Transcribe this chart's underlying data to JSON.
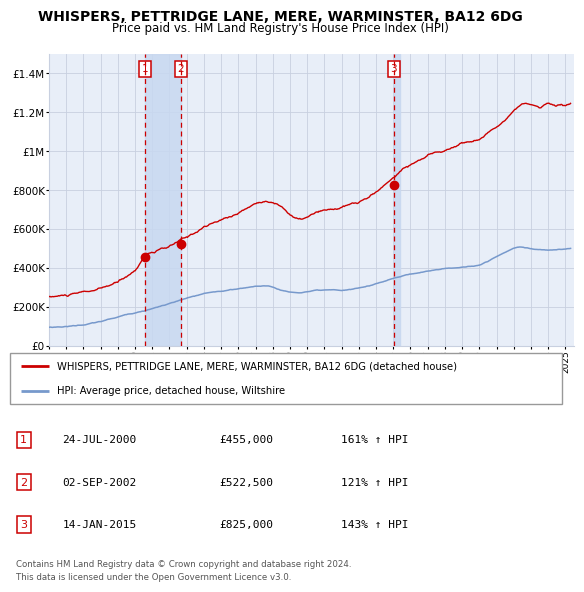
{
  "title": "WHISPERS, PETTRIDGE LANE, MERE, WARMINSTER, BA12 6DG",
  "subtitle": "Price paid vs. HM Land Registry's House Price Index (HPI)",
  "title_fontsize": 10,
  "subtitle_fontsize": 8.5,
  "background_color": "#ffffff",
  "plot_bg_color": "#e8eef8",
  "grid_color": "#c8d0e0",
  "red_line_color": "#cc0000",
  "blue_line_color": "#7799cc",
  "sale_events": [
    {
      "label": "1",
      "date_num": 2000.56,
      "price": 455000,
      "date_str": "24-JUL-2000",
      "hpi_pct": "161%"
    },
    {
      "label": "2",
      "date_num": 2002.67,
      "price": 522500,
      "date_str": "02-SEP-2002",
      "hpi_pct": "121%"
    },
    {
      "label": "3",
      "date_num": 2015.04,
      "price": 825000,
      "date_str": "14-JAN-2015",
      "hpi_pct": "143%"
    }
  ],
  "ylim": [
    0,
    1500000
  ],
  "xlim": [
    1995.0,
    2025.5
  ],
  "yticks": [
    0,
    200000,
    400000,
    600000,
    800000,
    1000000,
    1200000,
    1400000
  ],
  "ytick_labels": [
    "£0",
    "£200K",
    "£400K",
    "£600K",
    "£800K",
    "£1M",
    "£1.2M",
    "£1.4M"
  ],
  "legend_red_label": "WHISPERS, PETTRIDGE LANE, MERE, WARMINSTER, BA12 6DG (detached house)",
  "legend_blue_label": "HPI: Average price, detached house, Wiltshire",
  "footer1": "Contains HM Land Registry data © Crown copyright and database right 2024.",
  "footer2": "This data is licensed under the Open Government Licence v3.0."
}
